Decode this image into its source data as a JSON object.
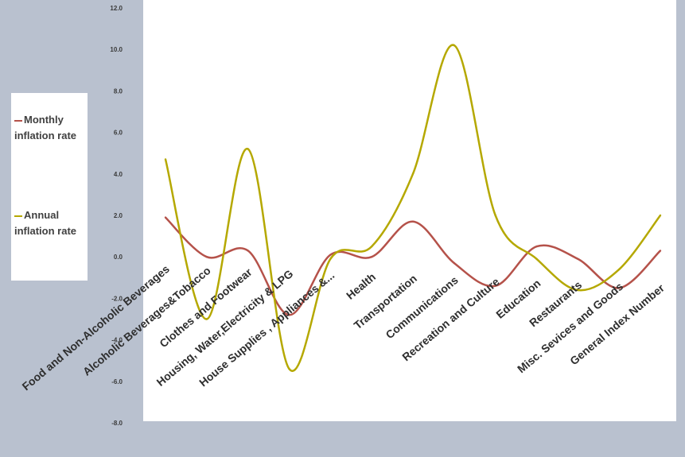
{
  "chart_data": {
    "type": "line",
    "title": "",
    "xlabel": "",
    "ylabel": "",
    "categories": [
      "Food and Non-Alcoholic Beverages",
      "Alcoholic Beverages&Tobacco",
      "Clothes and Footwear",
      "Housing, Water,Electricity & LPG",
      "House Supplies , Appliances &...",
      "Health",
      "Transportation",
      "Communications",
      "Recreation and Culture",
      "Education",
      "Restaurants",
      "Misc. Sevices and Goods",
      "General Index Number"
    ],
    "ylim": [
      -8.0,
      12.0
    ],
    "yticks": [
      "12.0",
      "10.0",
      "8.0",
      "6.0",
      "4.0",
      "2.0",
      "0.0",
      "-2.0",
      "-4.0",
      "-6.0",
      "-8.0"
    ],
    "series": [
      {
        "name": "Monthly inflation rate",
        "color": "#b5524a",
        "values": [
          1.9,
          0.0,
          0.3,
          -2.8,
          0.1,
          0.0,
          1.7,
          -0.3,
          -1.4,
          0.5,
          -0.1,
          -1.5,
          0.3
        ]
      },
      {
        "name": "Annual inflation rate",
        "color": "#b5a800",
        "values": [
          4.7,
          -3.0,
          5.2,
          -5.4,
          -0.1,
          0.5,
          4.0,
          10.2,
          2.0,
          -0.1,
          -1.6,
          -0.6,
          2.0
        ]
      }
    ],
    "legend_position": "left",
    "grid": false
  },
  "legend": {
    "items": [
      {
        "label": "Monthly inflation rate",
        "color": "#b5524a"
      },
      {
        "label": "Annual inflation rate",
        "color": "#b5a800"
      }
    ]
  }
}
